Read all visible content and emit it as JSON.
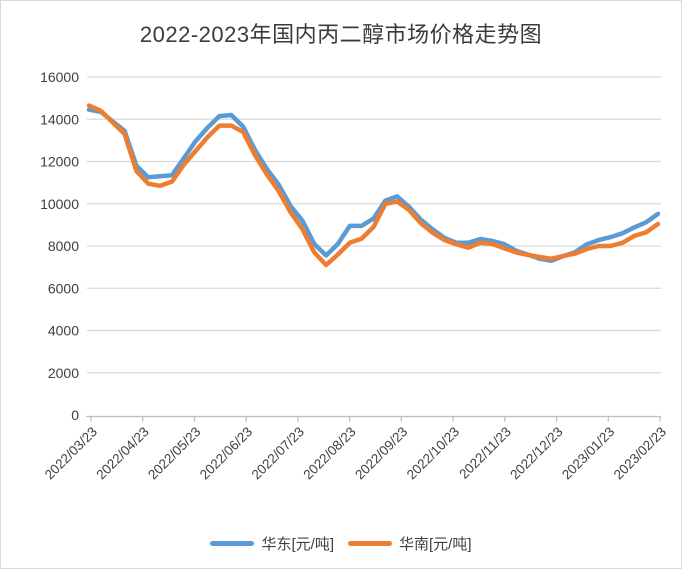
{
  "title": "2022-2023年国内丙二醇市场价格走势图",
  "legend": [
    {
      "label": "华东[元/吨]",
      "color": "#5B9BD5"
    },
    {
      "label": "华南[元/吨]",
      "color": "#ED7D31"
    }
  ],
  "colors": {
    "east_series": "#5B9BD5",
    "south_series": "#ED7D31",
    "gridline": "#D9D9D9",
    "axis_line": "#BFBFBF",
    "axis_text": "#404040",
    "title_text": "#3B3B3B"
  },
  "chart_data": {
    "type": "line",
    "title": "2022-2023年国内丙二醇市场价格走势图",
    "xlabel": "",
    "ylabel": "",
    "ylim": [
      0,
      16000
    ],
    "y_ticks": [
      0,
      2000,
      4000,
      6000,
      8000,
      10000,
      12000,
      14000,
      16000
    ],
    "x_labels": [
      "2022/03/23",
      "2022/04/23",
      "2022/05/23",
      "2022/06/23",
      "2022/07/23",
      "2022/08/23",
      "2022/09/23",
      "2022/10/23",
      "2022/11/23",
      "2022/12/23",
      "2023/01/23",
      "2023/02/23"
    ],
    "grid": "horizontal",
    "legend_position": "bottom",
    "x": [
      "2022/03/23",
      "2022/03/30",
      "2022/04/06",
      "2022/04/13",
      "2022/04/20",
      "2022/04/27",
      "2022/05/04",
      "2022/05/11",
      "2022/05/18",
      "2022/05/25",
      "2022/06/01",
      "2022/06/08",
      "2022/06/15",
      "2022/06/22",
      "2022/06/29",
      "2022/07/06",
      "2022/07/13",
      "2022/07/20",
      "2022/07/27",
      "2022/08/03",
      "2022/08/10",
      "2022/08/17",
      "2022/08/24",
      "2022/08/31",
      "2022/09/07",
      "2022/09/14",
      "2022/09/21",
      "2022/09/28",
      "2022/10/05",
      "2022/10/12",
      "2022/10/19",
      "2022/10/26",
      "2022/11/02",
      "2022/11/09",
      "2022/11/16",
      "2022/11/23",
      "2022/11/30",
      "2022/12/07",
      "2022/12/14",
      "2022/12/21",
      "2022/12/28",
      "2023/01/04",
      "2023/01/11",
      "2023/01/18",
      "2023/01/25",
      "2023/02/01",
      "2023/02/08",
      "2023/02/15",
      "2023/02/22"
    ],
    "series": [
      {
        "name": "华东[元/吨]",
        "color": "#5B9BD5",
        "values": [
          14450,
          14350,
          13900,
          13450,
          11800,
          11250,
          11300,
          11350,
          12150,
          12970,
          13600,
          14150,
          14200,
          13650,
          12550,
          11650,
          10900,
          9900,
          9200,
          8100,
          7550,
          8100,
          8950,
          8950,
          9300,
          10150,
          10350,
          9850,
          9250,
          8780,
          8380,
          8150,
          8150,
          8330,
          8240,
          8100,
          7780,
          7600,
          7400,
          7300,
          7520,
          7700,
          8080,
          8280,
          8420,
          8600,
          8880,
          9120,
          9520
        ]
      },
      {
        "name": "华南[元/吨]",
        "color": "#ED7D31",
        "values": [
          14650,
          14400,
          13850,
          13300,
          11550,
          10950,
          10850,
          11050,
          11850,
          12500,
          13150,
          13700,
          13700,
          13400,
          12300,
          11400,
          10600,
          9600,
          8800,
          7700,
          7100,
          7600,
          8150,
          8350,
          8900,
          10000,
          10100,
          9700,
          9080,
          8620,
          8280,
          8080,
          7920,
          8150,
          8100,
          7900,
          7700,
          7580,
          7480,
          7400,
          7520,
          7640,
          7860,
          8000,
          8000,
          8150,
          8480,
          8650,
          9040
        ]
      }
    ]
  }
}
